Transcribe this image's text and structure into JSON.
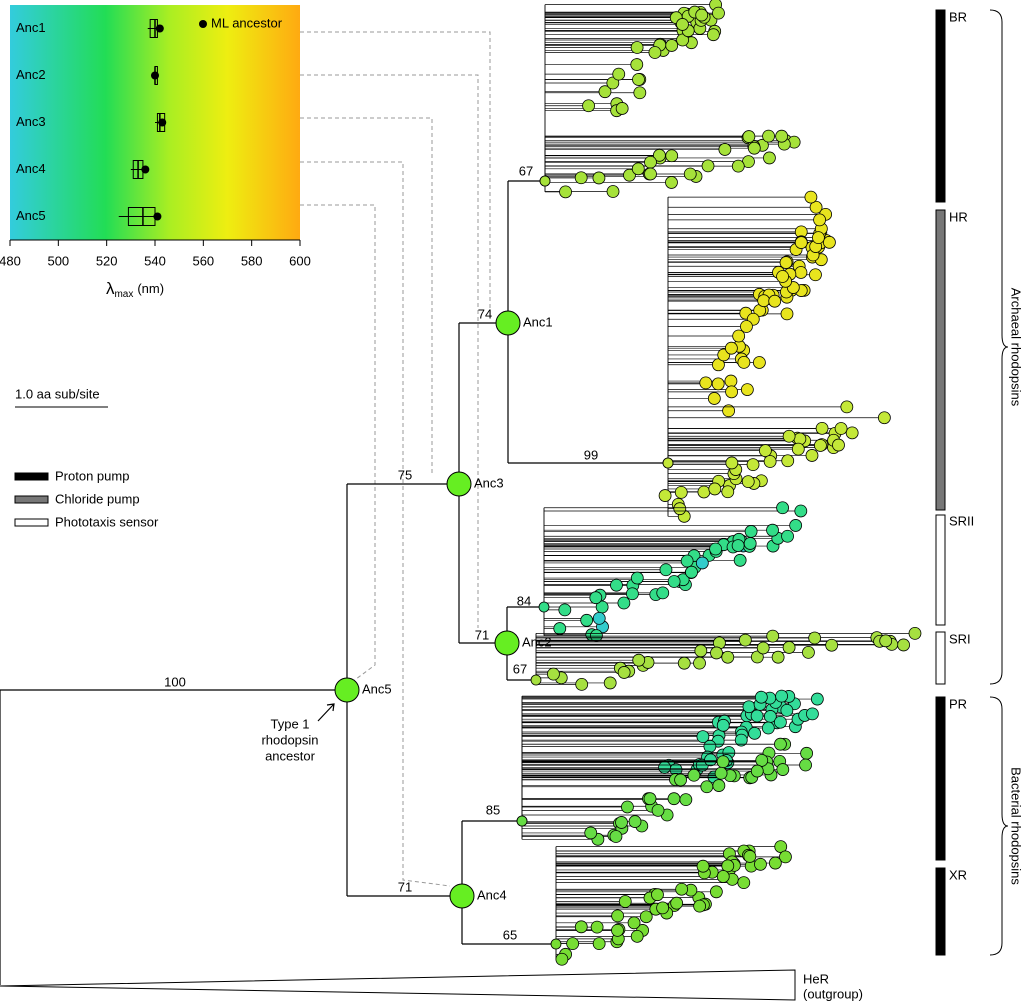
{
  "chart_data": {
    "type": "box",
    "categories": [
      "Anc1",
      "Anc2",
      "Anc3",
      "Anc4",
      "Anc5"
    ],
    "boxes": [
      {
        "min": 537,
        "q1": 538,
        "median": 540,
        "q3": 541,
        "max": 542
      },
      {
        "min": 539,
        "q1": 540,
        "median": 540,
        "q3": 541,
        "max": 541
      },
      {
        "min": 540,
        "q1": 541,
        "median": 542,
        "q3": 544,
        "max": 544
      },
      {
        "min": 530,
        "q1": 531,
        "median": 533,
        "q3": 535,
        "max": 536
      },
      {
        "min": 525,
        "q1": 529,
        "median": 535,
        "q3": 540,
        "max": 541
      }
    ],
    "ml_series": {
      "name": "ML ancestor",
      "color": "#000000",
      "values": [
        542,
        540,
        543,
        536,
        541
      ]
    },
    "xlim": [
      480,
      600
    ],
    "xticks": [
      480,
      500,
      520,
      540,
      560,
      580,
      600
    ],
    "xlabel": {
      "symbol": "λ",
      "subscript": "max",
      "unit": "(nm)"
    }
  },
  "tree": {
    "nodes": [
      {
        "label": "Anc1",
        "support": 74
      },
      {
        "label": "Anc2",
        "support": 71
      },
      {
        "label": "Anc3",
        "support": 75
      },
      {
        "label": "Anc4",
        "support": 71
      },
      {
        "label": "Anc5",
        "support": 100
      }
    ],
    "other_supports": [
      67,
      99,
      84,
      67,
      85,
      65
    ],
    "annotation": [
      "Type 1",
      "rhodopsin",
      "ancestor"
    ],
    "scale_bar": "1.0 aa sub/site",
    "legend": [
      "Proton pump",
      "Chloride pump",
      "Phototaxis sensor"
    ],
    "clades": [
      "BR",
      "HR",
      "SRII",
      "SRI",
      "PR",
      "XR"
    ],
    "groups": [
      "Archaeal rhodopsins",
      "Bacterial rhodopsins"
    ],
    "outgroup": [
      "HeR",
      "(outgroup)"
    ]
  }
}
